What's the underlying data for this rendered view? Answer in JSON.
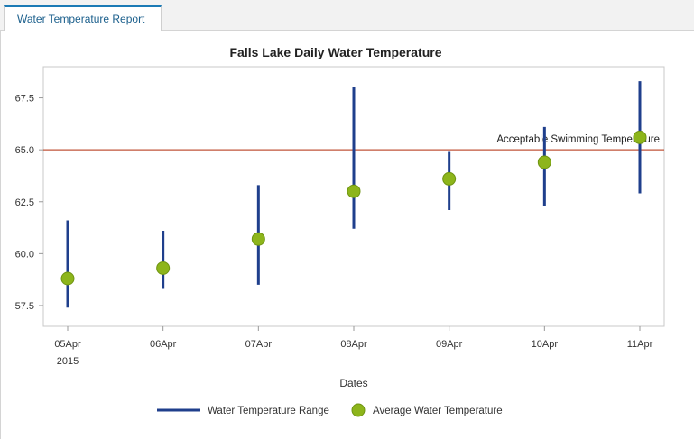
{
  "tabs": [
    {
      "label": "Water Temperature Report",
      "active": true
    }
  ],
  "chart_data": {
    "type": "scatter",
    "title": "Falls Lake Daily Water Temperature",
    "xlabel": "Dates",
    "ylabel": "",
    "categories": [
      "05Apr",
      "06Apr",
      "07Apr",
      "08Apr",
      "09Apr",
      "10Apr",
      "11Apr"
    ],
    "year_label": "2015",
    "ylim": [
      56.5,
      69.0
    ],
    "yticks": [
      57.5,
      60.0,
      62.5,
      65.0,
      67.5
    ],
    "ytick_labels": [
      "57.5",
      "60.0",
      "62.5",
      "65.0",
      "67.5"
    ],
    "series": [
      {
        "name": "Water Temperature Range",
        "kind": "range",
        "color": "#1f3f8c",
        "low": [
          57.4,
          58.3,
          58.5,
          61.2,
          62.1,
          62.3,
          62.9
        ],
        "high": [
          61.6,
          61.1,
          63.3,
          68.0,
          64.9,
          66.1,
          68.3
        ]
      },
      {
        "name": "Average Water Temperature",
        "kind": "marker",
        "color": "#8db51b",
        "values": [
          58.8,
          59.3,
          60.7,
          63.0,
          63.6,
          64.4,
          65.6
        ]
      }
    ],
    "reference_line": {
      "value": 65.0,
      "label": "Acceptable Swimming Temperature",
      "color": "#c0553a"
    },
    "legend_position": "bottom",
    "grid": false
  }
}
